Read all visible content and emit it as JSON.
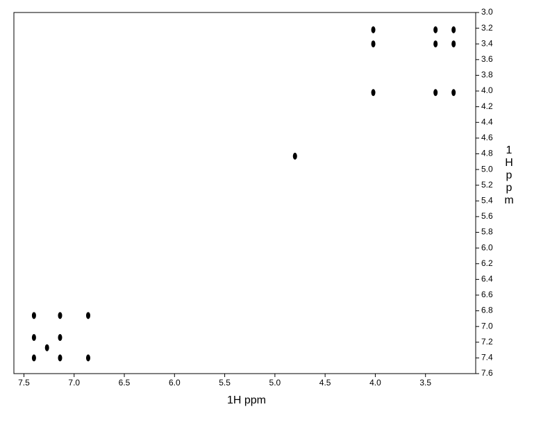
{
  "chart_data": {
    "type": "scatter",
    "x_label": "1H ppm",
    "y_label": "1H ppm",
    "xlim": [
      7.6,
      3.0
    ],
    "ylim": [
      7.6,
      3.0
    ],
    "xticks": [
      {
        "value": 7.5,
        "label": "7.5"
      },
      {
        "value": 7.0,
        "label": "7.0"
      },
      {
        "value": 6.5,
        "label": "6.5"
      },
      {
        "value": 6.0,
        "label": "6.0"
      },
      {
        "value": 5.5,
        "label": "5.5"
      },
      {
        "value": 5.0,
        "label": "5.0"
      },
      {
        "value": 4.5,
        "label": "4.5"
      },
      {
        "value": 4.0,
        "label": "4.0"
      },
      {
        "value": 3.5,
        "label": "3.5"
      }
    ],
    "yticks": [
      {
        "value": 3.0,
        "label": "3.0"
      },
      3.2,
      3.4,
      3.6,
      3.8,
      {
        "value": 4.0,
        "label": "4.0"
      },
      4.2,
      4.4,
      4.6,
      4.8,
      {
        "value": 5.0,
        "label": "5.0"
      },
      5.2,
      5.4,
      5.6,
      5.8,
      {
        "value": 6.0,
        "label": "6.0"
      },
      6.2,
      6.4,
      6.6,
      6.8,
      {
        "value": 7.0,
        "label": "7.0"
      },
      7.2,
      7.4,
      7.6
    ],
    "series": [
      {
        "color": "#000000",
        "x": [
          4.02,
          3.4,
          3.22,
          4.02,
          3.4,
          3.22,
          4.02,
          3.4,
          3.22,
          4.8,
          7.4,
          7.14,
          6.86,
          7.4,
          7.14,
          7.27,
          7.4,
          7.14,
          6.86
        ],
        "values": [
          3.22,
          3.22,
          3.22,
          3.4,
          3.4,
          3.4,
          4.02,
          4.02,
          4.02,
          4.83,
          6.86,
          6.86,
          6.86,
          7.14,
          7.14,
          7.27,
          7.4,
          7.4,
          7.4
        ]
      }
    ]
  }
}
